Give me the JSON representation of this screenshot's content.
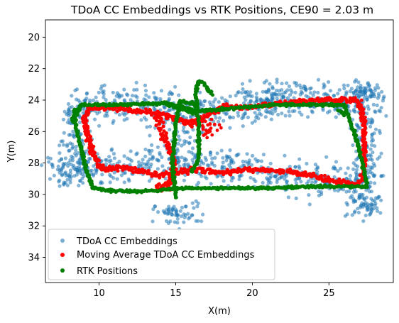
{
  "chart_data": {
    "type": "scatter",
    "title": "TDoA CC Embeddings vs RTK Positions, CE90 = 2.03 m",
    "xlabel": "X(m)",
    "ylabel": "Y(m)",
    "xlim": [
      6.5,
      29.2
    ],
    "ylim": [
      35.6,
      18.9
    ],
    "y_inverted": true,
    "x_ticks": [
      10,
      15,
      20,
      25
    ],
    "y_ticks": [
      20,
      22,
      24,
      26,
      28,
      30,
      32,
      34
    ],
    "grid": false,
    "legend_position": "lower-left",
    "colors": {
      "embeddings": "#1f77b4",
      "moving_average": "#ff0000",
      "rtk": "#008000"
    },
    "series": [
      {
        "name": "TDoA CC Embeddings",
        "style": "scatter-cloud",
        "path_x": [
          8.5,
          16,
          16,
          22,
          27.5,
          27.5,
          22,
          15.5,
          10,
          8.5,
          8.5
        ],
        "path_y": [
          24.2,
          24.4,
          25.0,
          24.0,
          24.0,
          29.5,
          28.8,
          28.0,
          28.3,
          28.6,
          24.2
        ],
        "clusters": [
          {
            "x": 8.0,
            "y": 28.6,
            "sx": 0.8,
            "sy": 0.5
          },
          {
            "x": 21.5,
            "y": 23.6,
            "sx": 1.2,
            "sy": 0.5
          },
          {
            "x": 27.3,
            "y": 23.6,
            "sx": 0.6,
            "sy": 0.4
          },
          {
            "x": 27.3,
            "y": 30.8,
            "sx": 0.6,
            "sy": 0.4
          },
          {
            "x": 15.2,
            "y": 31.2,
            "sx": 0.8,
            "sy": 0.4
          },
          {
            "x": 15.0,
            "y": 26.8,
            "sx": 0.8,
            "sy": 0.9
          }
        ]
      },
      {
        "name": "Moving Average TDoA CC Embeddings",
        "style": "dense-line",
        "x": [
          9.0,
          9.4,
          11.0,
          12.5,
          13.8,
          15.0,
          16.0,
          17.0,
          18.3,
          19.5,
          21.0,
          23.0,
          25.0,
          26.5,
          27.0,
          27.3,
          27.3,
          27.2,
          27.0,
          25.5,
          23.5,
          21.5,
          19.5,
          18.0,
          16.5,
          15.0,
          14.0,
          13.0,
          11.5,
          10.2,
          9.5,
          9.2,
          9.0
        ],
        "y": [
          25.2,
          24.5,
          24.5,
          24.7,
          24.8,
          25.2,
          25.5,
          25.0,
          24.4,
          24.5,
          24.3,
          24.1,
          24.0,
          24.0,
          24.1,
          25.5,
          28.0,
          29.0,
          29.3,
          29.2,
          28.7,
          28.5,
          28.4,
          28.6,
          28.4,
          28.6,
          28.8,
          28.6,
          28.3,
          28.4,
          27.2,
          26.0,
          25.2
        ],
        "extra_x": [
          13.8,
          14.2,
          14.7,
          14.9,
          14.6,
          14.0,
          13.9
        ],
        "extra_y": [
          24.9,
          26.2,
          27.3,
          28.4,
          29.5,
          29.7,
          29.3
        ],
        "cluster": {
          "x": 17.0,
          "y": 25.9,
          "sx": 0.35,
          "sy": 0.3
        }
      },
      {
        "name": "RTK Positions",
        "style": "dense-line",
        "x": [
          8.4,
          8.3,
          8.8,
          11.5,
          14.5,
          16.5,
          19.0,
          21.5,
          24.5,
          26.0,
          26.8,
          27.2,
          27.4,
          27.5,
          26.5,
          24.0,
          21.0,
          18.0,
          15.5,
          13.0,
          11.0,
          9.6,
          9.2,
          8.8,
          8.5,
          8.4
        ],
        "y": [
          24.6,
          25.4,
          24.3,
          24.3,
          24.2,
          24.7,
          24.5,
          24.3,
          24.3,
          24.3,
          26.5,
          28.0,
          29.0,
          29.5,
          29.5,
          29.5,
          29.6,
          29.6,
          29.6,
          29.8,
          29.8,
          29.6,
          28.5,
          27.0,
          25.8,
          24.6
        ],
        "inner_x": [
          16.3,
          16.2,
          15.3,
          15.0,
          14.9,
          14.8,
          14.9,
          15.0,
          15.0
        ],
        "inner_y": [
          24.4,
          24.2,
          24.1,
          25.5,
          26.5,
          28.0,
          29.2,
          29.8,
          30.2
        ],
        "inner2_x": [
          14.5,
          15.8,
          16.5,
          16.5,
          16.0
        ],
        "inner2_y": [
          24.3,
          24.7,
          25.0,
          27.8,
          28.6
        ],
        "spur_x": [
          16.4,
          16.3,
          16.5,
          16.8,
          17.1,
          17.4
        ],
        "spur_y": [
          24.5,
          23.5,
          22.8,
          22.9,
          23.3,
          23.6
        ],
        "ext_x": [
          25.6,
          25.9,
          26.0
        ],
        "ext_y": [
          24.6,
          24.8,
          25.0
        ]
      }
    ]
  }
}
